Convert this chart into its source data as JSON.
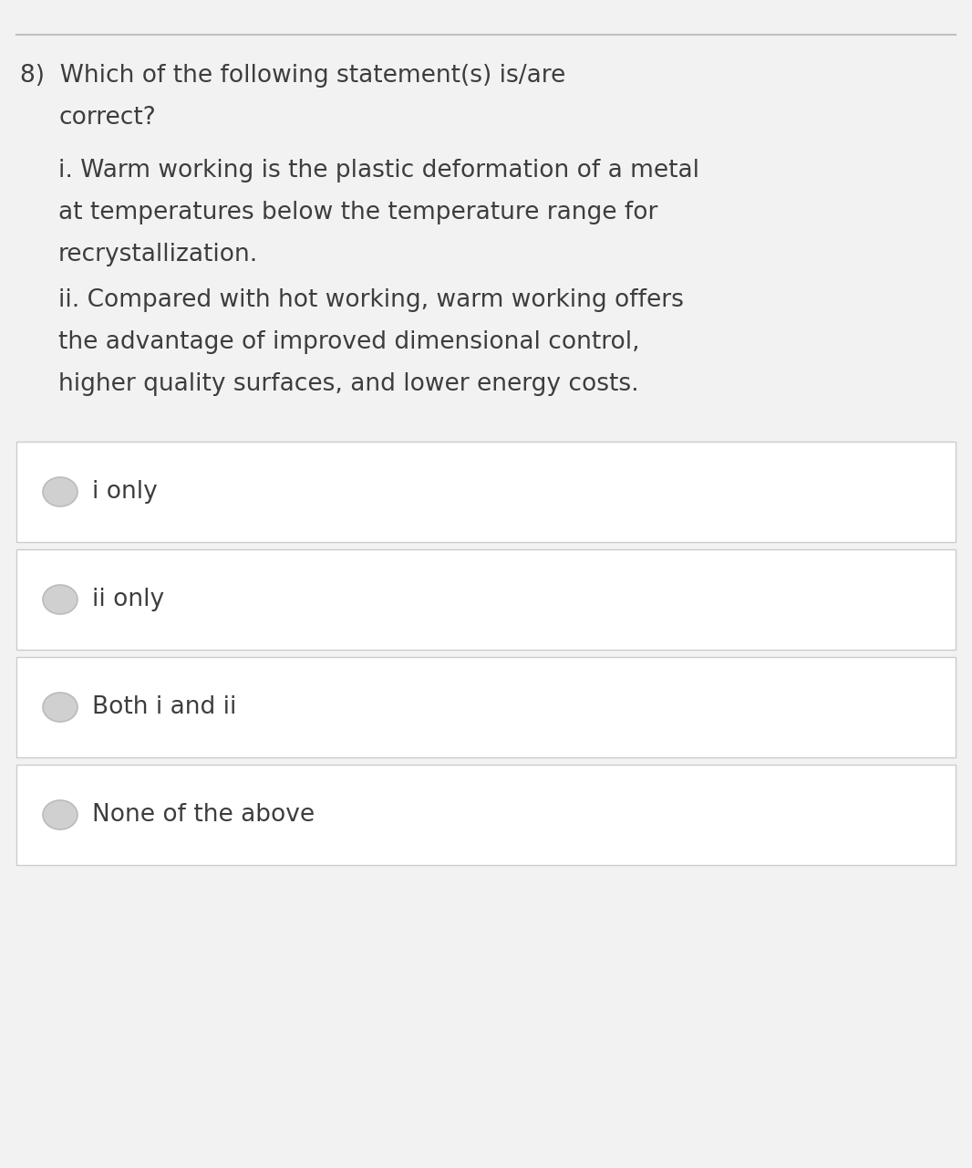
{
  "bg_color": "#f2f2f2",
  "box_bg": "#ffffff",
  "border_color": "#cccccc",
  "text_color": "#3d3d3d",
  "radio_fill": "#d0d0d0",
  "radio_border": "#bbbbbb",
  "top_line_color": "#c0c0c0",
  "question_number": "8)",
  "question_text_line1": "Which of the following statement(s) is/are",
  "question_text_line2": "correct?",
  "statement_i_line1": "i. Warm working is the plastic deformation of a metal",
  "statement_i_line2": "at temperatures below the temperature range for",
  "statement_i_line3": "recrystallization.",
  "statement_ii_line1": "ii. Compared with hot working, warm working offers",
  "statement_ii_line2": "the advantage of improved dimensional control,",
  "statement_ii_line3": "higher quality surfaces, and lower energy costs.",
  "options": [
    "i only",
    "ii only",
    "Both i and ii",
    "None of the above"
  ],
  "font_size_question": 19,
  "font_size_option": 19,
  "font_size_statement": 19
}
